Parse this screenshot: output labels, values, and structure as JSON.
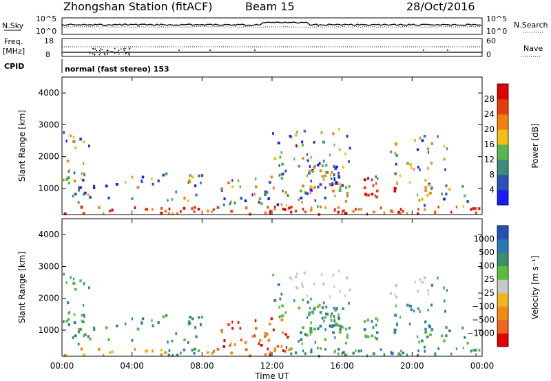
{
  "header": {
    "station": "Zhongshan Station (fitACF)",
    "beam": "Beam 15",
    "date": "28/Oct/2016"
  },
  "top_panel": {
    "left_label": "N.Sky",
    "left_ticks": [
      "10^5",
      "10^0"
    ],
    "right_ticks": [
      "10^5",
      "10^0"
    ],
    "right_label": "N.Search"
  },
  "freq_panel": {
    "left_label_top": "Freq.",
    "left_label_unit": "[MHz]",
    "left_ticks": [
      "18",
      "8"
    ],
    "right_ticks": [
      "60",
      "0"
    ],
    "right_label": "Nave"
  },
  "cpid": {
    "label": "CPID",
    "value": "normal (fast stereo) 153"
  },
  "chart_data": [
    {
      "type": "heatmap",
      "name": "power",
      "ylabel": "Slant Range [km]",
      "yticks": [
        "1000",
        "2000",
        "3000",
        "4000"
      ],
      "ylim": [
        180,
        4500
      ],
      "colorbar": {
        "label": "Power [dB]",
        "ticks": [
          "4",
          "8",
          "12",
          "16",
          "20",
          "24",
          "28"
        ],
        "colors": [
          "#1a1aff",
          "#2852b4",
          "#3c8c78",
          "#5ab450",
          "#f0be14",
          "#f0820a",
          "#e83c0a",
          "#e00000"
        ]
      }
    },
    {
      "type": "heatmap",
      "name": "velocity",
      "ylabel": "Slant Range [km]",
      "yticks": [
        "1000",
        "2000",
        "3000",
        "4000"
      ],
      "ylim": [
        180,
        4500
      ],
      "xlabel": "Time UT",
      "xticks": [
        "00:00",
        "04:00",
        "08:00",
        "12:00",
        "16:00",
        "20:00",
        "00:00"
      ],
      "colorbar": {
        "label": "Velocity [m s⁻¹]",
        "ticks": [
          "1000",
          "500",
          "100",
          "25",
          "−25",
          "−100",
          "−500",
          "−1000"
        ],
        "colors": [
          "#2850b4",
          "#2878b4",
          "#3c8c6e",
          "#5abe3c",
          "#c8c8c8",
          "#f0b41e",
          "#f08c14",
          "#f0641e",
          "#e00000"
        ]
      }
    }
  ]
}
